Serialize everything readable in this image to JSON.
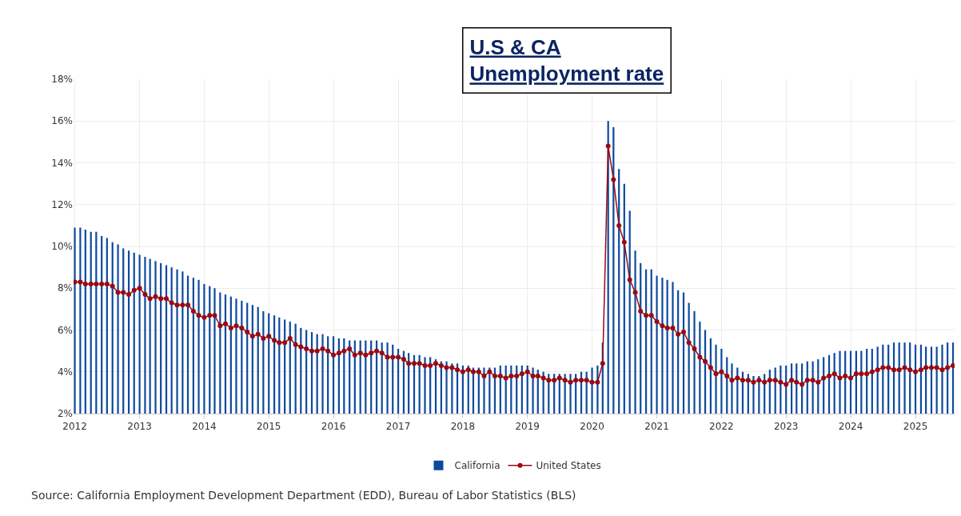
{
  "chart_data": {
    "type": "bar",
    "title": "U.S & CA\nUnemployment rate",
    "x": [
      "2012-01",
      "2012-02",
      "2012-03",
      "2012-04",
      "2012-05",
      "2012-06",
      "2012-07",
      "2012-08",
      "2012-09",
      "2012-10",
      "2012-11",
      "2012-12",
      "2013-01",
      "2013-02",
      "2013-03",
      "2013-04",
      "2013-05",
      "2013-06",
      "2013-07",
      "2013-08",
      "2013-09",
      "2013-10",
      "2013-11",
      "2013-12",
      "2014-01",
      "2014-02",
      "2014-03",
      "2014-04",
      "2014-05",
      "2014-06",
      "2014-07",
      "2014-08",
      "2014-09",
      "2014-10",
      "2014-11",
      "2014-12",
      "2015-01",
      "2015-02",
      "2015-03",
      "2015-04",
      "2015-05",
      "2015-06",
      "2015-07",
      "2015-08",
      "2015-09",
      "2015-10",
      "2015-11",
      "2015-12",
      "2016-01",
      "2016-02",
      "2016-03",
      "2016-04",
      "2016-05",
      "2016-06",
      "2016-07",
      "2016-08",
      "2016-09",
      "2016-10",
      "2016-11",
      "2016-12",
      "2017-01",
      "2017-02",
      "2017-03",
      "2017-04",
      "2017-05",
      "2017-06",
      "2017-07",
      "2017-08",
      "2017-09",
      "2017-10",
      "2017-11",
      "2017-12",
      "2018-01",
      "2018-02",
      "2018-03",
      "2018-04",
      "2018-05",
      "2018-06",
      "2018-07",
      "2018-08",
      "2018-09",
      "2018-10",
      "2018-11",
      "2018-12",
      "2019-01",
      "2019-02",
      "2019-03",
      "2019-04",
      "2019-05",
      "2019-06",
      "2019-07",
      "2019-08",
      "2019-09",
      "2019-10",
      "2019-11",
      "2019-12",
      "2020-01",
      "2020-02",
      "2020-03",
      "2020-04",
      "2020-05",
      "2020-06",
      "2020-07",
      "2020-08",
      "2020-09",
      "2020-10",
      "2020-11",
      "2020-12",
      "2021-01",
      "2021-02",
      "2021-03",
      "2021-04",
      "2021-05",
      "2021-06",
      "2021-07",
      "2021-08",
      "2021-09",
      "2021-10",
      "2021-11",
      "2021-12",
      "2022-01",
      "2022-02",
      "2022-03",
      "2022-04",
      "2022-05",
      "2022-06",
      "2022-07",
      "2022-08",
      "2022-09",
      "2022-10",
      "2022-11",
      "2022-12",
      "2023-01",
      "2023-02",
      "2023-03",
      "2023-04",
      "2023-05",
      "2023-06",
      "2023-07",
      "2023-08",
      "2023-09",
      "2023-10",
      "2023-11",
      "2023-12",
      "2024-01",
      "2024-02",
      "2024-03",
      "2024-04",
      "2024-05",
      "2024-06",
      "2024-07",
      "2024-08",
      "2024-09",
      "2024-10",
      "2024-11",
      "2024-12",
      "2025-01",
      "2025-02",
      "2025-03",
      "2025-04",
      "2025-05",
      "2025-06",
      "2025-07",
      "2025-08"
    ],
    "series": [
      {
        "name": "California",
        "color": "#0d4a9e",
        "values": [
          10.9,
          10.9,
          10.8,
          10.7,
          10.7,
          10.5,
          10.4,
          10.2,
          10.1,
          9.9,
          9.8,
          9.7,
          9.6,
          9.5,
          9.4,
          9.3,
          9.2,
          9.1,
          9.0,
          8.9,
          8.8,
          8.6,
          8.5,
          8.4,
          8.2,
          8.1,
          8.0,
          7.8,
          7.7,
          7.6,
          7.5,
          7.4,
          7.3,
          7.2,
          7.1,
          6.9,
          6.8,
          6.7,
          6.6,
          6.5,
          6.4,
          6.3,
          6.1,
          6.0,
          5.9,
          5.8,
          5.8,
          5.7,
          5.7,
          5.6,
          5.6,
          5.5,
          5.5,
          5.5,
          5.5,
          5.5,
          5.5,
          5.4,
          5.4,
          5.3,
          5.1,
          5.0,
          4.9,
          4.8,
          4.8,
          4.7,
          4.7,
          4.6,
          4.5,
          4.5,
          4.4,
          4.4,
          4.3,
          4.3,
          4.2,
          4.2,
          4.2,
          4.2,
          4.2,
          4.3,
          4.3,
          4.3,
          4.3,
          4.3,
          4.3,
          4.2,
          4.1,
          4.0,
          3.9,
          3.9,
          3.9,
          3.9,
          3.9,
          3.9,
          4.0,
          4.0,
          4.2,
          4.3,
          5.4,
          16.0,
          15.7,
          13.7,
          13.0,
          11.7,
          9.8,
          9.2,
          8.9,
          8.9,
          8.6,
          8.5,
          8.4,
          8.3,
          7.9,
          7.8,
          7.3,
          6.9,
          6.4,
          6.0,
          5.6,
          5.3,
          5.1,
          4.7,
          4.4,
          4.2,
          4.0,
          3.9,
          3.8,
          3.8,
          3.9,
          4.1,
          4.2,
          4.3,
          4.3,
          4.4,
          4.4,
          4.4,
          4.5,
          4.5,
          4.6,
          4.7,
          4.8,
          4.9,
          5.0,
          5.0,
          5.0,
          5.0,
          5.0,
          5.1,
          5.1,
          5.2,
          5.3,
          5.3,
          5.4,
          5.4,
          5.4,
          5.4,
          5.3,
          5.3,
          5.2,
          5.2,
          5.2,
          5.3,
          5.4,
          5.4
        ]
      },
      {
        "name": "United States",
        "type": "line",
        "color": "#9b0a12",
        "marker": "circle",
        "values": [
          8.3,
          8.3,
          8.2,
          8.2,
          8.2,
          8.2,
          8.2,
          8.1,
          7.8,
          7.8,
          7.7,
          7.9,
          8.0,
          7.7,
          7.5,
          7.6,
          7.5,
          7.5,
          7.3,
          7.2,
          7.2,
          7.2,
          6.9,
          6.7,
          6.6,
          6.7,
          6.7,
          6.2,
          6.3,
          6.1,
          6.2,
          6.1,
          5.9,
          5.7,
          5.8,
          5.6,
          5.7,
          5.5,
          5.4,
          5.4,
          5.6,
          5.3,
          5.2,
          5.1,
          5.0,
          5.0,
          5.1,
          5.0,
          4.8,
          4.9,
          5.0,
          5.1,
          4.8,
          4.9,
          4.8,
          4.9,
          5.0,
          4.9,
          4.7,
          4.7,
          4.7,
          4.6,
          4.4,
          4.4,
          4.4,
          4.3,
          4.3,
          4.4,
          4.3,
          4.2,
          4.2,
          4.1,
          4.0,
          4.1,
          4.0,
          4.0,
          3.8,
          4.0,
          3.8,
          3.8,
          3.7,
          3.8,
          3.8,
          3.9,
          4.0,
          3.8,
          3.8,
          3.7,
          3.6,
          3.6,
          3.7,
          3.6,
          3.5,
          3.6,
          3.6,
          3.6,
          3.5,
          3.5,
          4.4,
          14.8,
          13.2,
          11.0,
          10.2,
          8.4,
          7.8,
          6.9,
          6.7,
          6.7,
          6.4,
          6.2,
          6.1,
          6.1,
          5.8,
          5.9,
          5.4,
          5.1,
          4.7,
          4.5,
          4.2,
          3.9,
          4.0,
          3.8,
          3.6,
          3.7,
          3.6,
          3.6,
          3.5,
          3.6,
          3.5,
          3.6,
          3.6,
          3.5,
          3.4,
          3.6,
          3.5,
          3.4,
          3.6,
          3.6,
          3.5,
          3.7,
          3.8,
          3.9,
          3.7,
          3.8,
          3.7,
          3.9,
          3.9,
          3.9,
          4.0,
          4.1,
          4.2,
          4.2,
          4.1,
          4.1,
          4.2,
          4.1,
          4.0,
          4.1,
          4.2,
          4.2,
          4.2,
          4.1,
          4.2,
          4.3
        ]
      }
    ],
    "xlim": [
      "2011-12-25",
      "2025-08-10"
    ],
    "xticks": [
      {
        "value": "2012-01-01",
        "label": "2012"
      },
      {
        "value": "2013-01-01",
        "label": "2013"
      },
      {
        "value": "2014-01-01",
        "label": "2014"
      },
      {
        "value": "2015-01-01",
        "label": "2015"
      },
      {
        "value": "2016-01-01",
        "label": "2016"
      },
      {
        "value": "2017-01-01",
        "label": "2017"
      },
      {
        "value": "2018-01-01",
        "label": "2018"
      },
      {
        "value": "2019-01-01",
        "label": "2019"
      },
      {
        "value": "2020-01-01",
        "label": "2020"
      },
      {
        "value": "2021-01-01",
        "label": "2021"
      },
      {
        "value": "2022-01-01",
        "label": "2022"
      },
      {
        "value": "2023-01-01",
        "label": "2023"
      },
      {
        "value": "2024-01-01",
        "label": "2024"
      },
      {
        "value": "2025-01-01",
        "label": "2025"
      }
    ],
    "ylim": [
      2,
      18
    ],
    "yticks": [
      {
        "value": 2,
        "label": "2%"
      },
      {
        "value": 4,
        "label": "4%"
      },
      {
        "value": 6,
        "label": "6%"
      },
      {
        "value": 8,
        "label": "8%"
      },
      {
        "value": 10,
        "label": "10%"
      },
      {
        "value": 12,
        "label": "12%"
      },
      {
        "value": 14,
        "label": "14%"
      },
      {
        "value": 16,
        "label": "16%"
      },
      {
        "value": 18,
        "label": "18%"
      }
    ],
    "grid": true,
    "legend": "bottom",
    "annotations": [
      "Source: California Employment Development Department (EDD), Bureau of Labor Statistics (BLS)"
    ]
  }
}
